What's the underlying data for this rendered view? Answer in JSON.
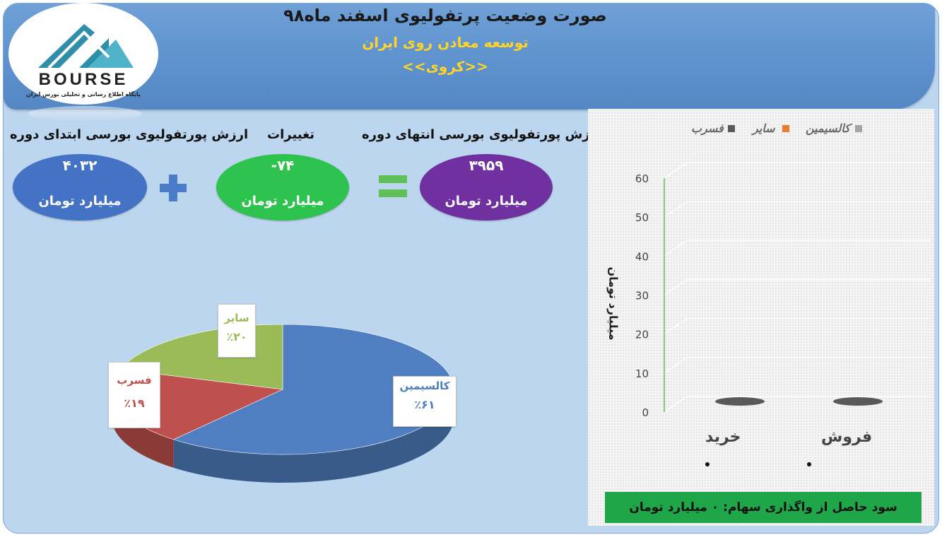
{
  "header": {
    "title": "صورت وضعیت پرتفولیوی اسفند ماه۹۸",
    "company": "توسعه معادن روی ایران",
    "symbol": "<<کروی>>",
    "logo_text": "BOURSE",
    "logo_subtext": "پایگاه اطلاع رسانی و تحلیلی بورس ایران"
  },
  "summary": {
    "start_label": "ارزش پورتفولیوی بورسی ابتدای دوره",
    "start_value": "۴۰۳۲",
    "change_label": "تغییرات",
    "change_value": "-۷۴",
    "end_label": "ارزش پورتفولیوی بورسی انتهای دوره",
    "end_value": "۳۹۵۹",
    "unit": "میلیارد تومان",
    "colors": {
      "start": "#4472c4",
      "change": "#2ec24e",
      "end": "#7030a0"
    }
  },
  "chart_data": [
    {
      "type": "pie",
      "categories": [
        "کالسیمین",
        "فسرب",
        "سایر"
      ],
      "values": [
        61,
        19,
        20
      ],
      "value_labels": [
        "٪۶۱",
        "٪۱۹",
        "٪۲۰"
      ],
      "colors": [
        "#4f7fc0",
        "#c0504d",
        "#9bbb59"
      ]
    },
    {
      "type": "bar",
      "categories": [
        "خرید",
        "فروش"
      ],
      "series": [
        {
          "name": "کالسیمین",
          "values": [
            0,
            0
          ],
          "color": "#a5a5a5"
        },
        {
          "name": "سایر",
          "values": [
            0,
            0
          ],
          "color": "#ed7d31"
        },
        {
          "name": "فسرب",
          "values": [
            0,
            0
          ],
          "color": "#595959"
        }
      ],
      "ylabel": "میلیارد تومان",
      "ylim": [
        0,
        60
      ],
      "yticks": [
        "0",
        "10",
        "20",
        "30",
        "40",
        "50",
        "60"
      ],
      "grid": true,
      "legend": "top",
      "footer": "سود حاصل از واگذاری سهام: ۰ میلیارد تومان"
    }
  ]
}
